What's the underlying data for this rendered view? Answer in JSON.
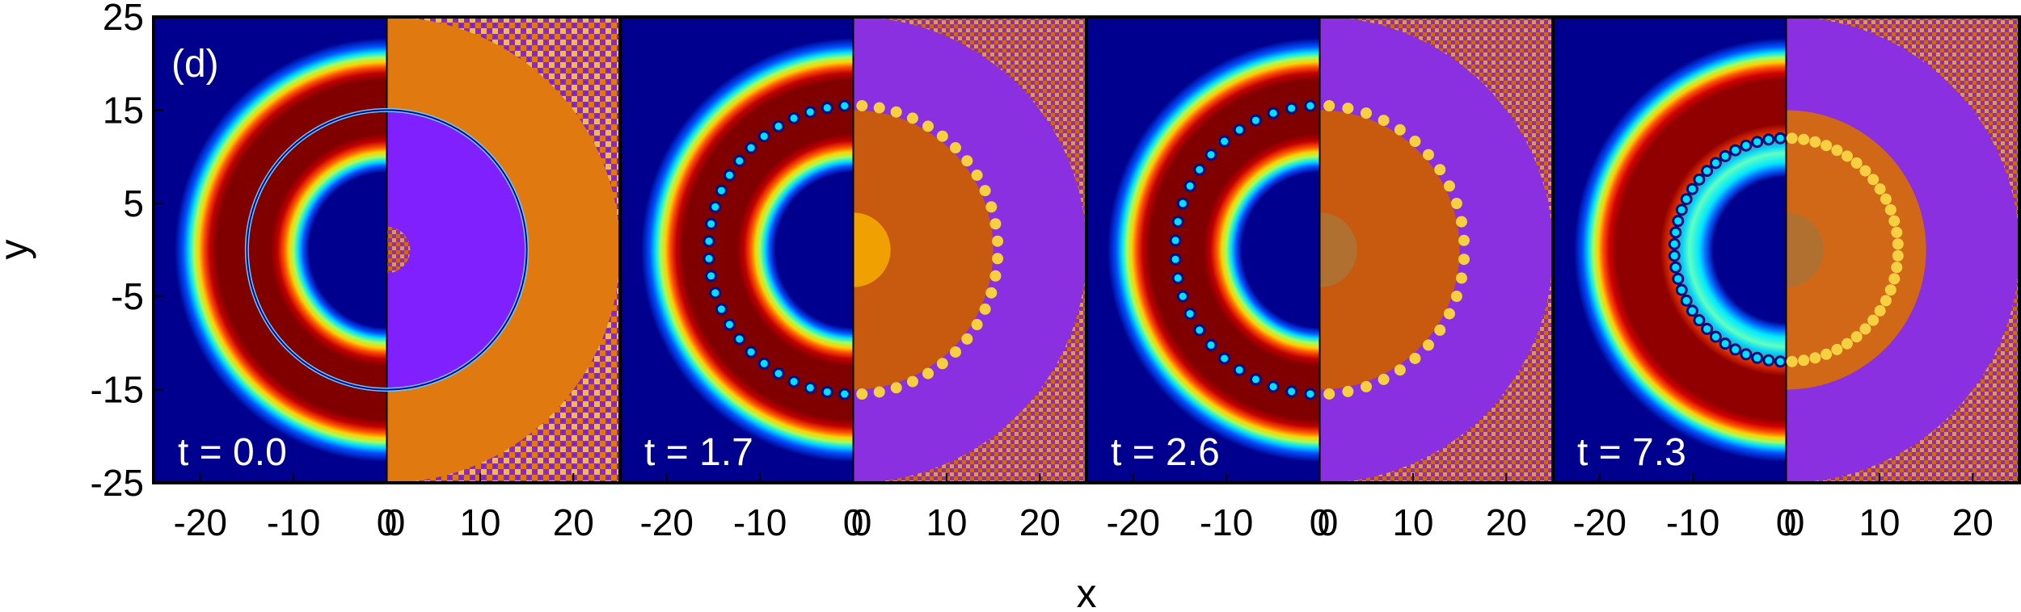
{
  "chart_data": {
    "type": "heatmap",
    "panel_label": "(d)",
    "xlabel": "x",
    "ylabel": "y",
    "ylim": [
      -25,
      25
    ],
    "yticks": [
      "25",
      "15",
      "5",
      "-5",
      "-15",
      "-25"
    ],
    "half_xlim": [
      -25,
      25
    ],
    "xticks_left": [
      "-20",
      "-10",
      "0"
    ],
    "xticks_right": [
      "10",
      "20"
    ],
    "grid": false,
    "panels": [
      {
        "time_label": "t = 0.0",
        "t": 0.0,
        "vortex_count": 0,
        "vortex_ring_radius": 15.0
      },
      {
        "time_label": "t = 1.7",
        "t": 1.7,
        "vortex_count": 26,
        "vortex_ring_radius": 15.5
      },
      {
        "time_label": "t = 2.6",
        "t": 2.6,
        "vortex_count": 24,
        "vortex_ring_radius": 15.5
      },
      {
        "time_label": "t = 7.3",
        "t": 7.3,
        "vortex_count": 30,
        "vortex_ring_radius": 12.0
      }
    ],
    "left_half": "density (jet colormap)",
    "right_half": "phase"
  },
  "colors": {
    "density_background": "#00008f",
    "density_ring": "#800000",
    "phase_orange": "#e07a10",
    "phase_purple": "#8020ff",
    "frame": "#000000"
  }
}
